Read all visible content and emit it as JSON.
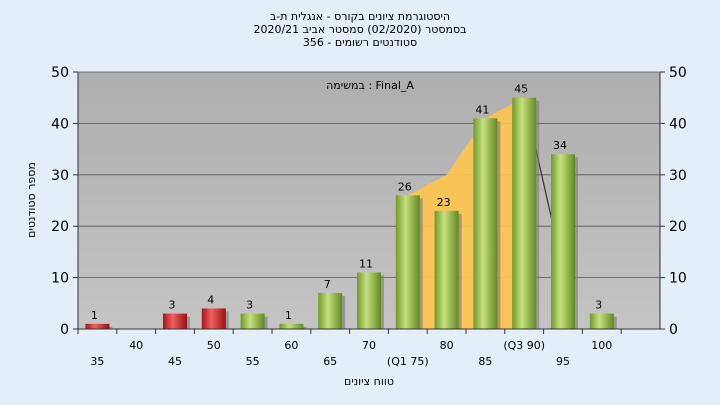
{
  "header": {
    "line1": "היסטוגרמת ציונים בקורס - אנגלית ת-ב",
    "line2": "בסמסטר  (02/2020)  סמסטר אביב 2020/21",
    "line3": "סטודנטים רשומים - 356"
  },
  "chart_data": {
    "type": "bar",
    "annotation": "במשימה : Final_A",
    "xlabel": "טווח ציונים",
    "ylabel": "מספר סטודנטים",
    "ylim": [
      0,
      50
    ],
    "yticks": [
      0,
      10,
      20,
      30,
      40,
      50
    ],
    "grid": true,
    "bars": [
      {
        "label": "35",
        "value": 1,
        "color": "#dd3333"
      },
      {
        "label": "40",
        "value": 0,
        "color": "#dd3333"
      },
      {
        "label": "45",
        "value": 3,
        "color": "#dd3333"
      },
      {
        "label": "50",
        "value": 4,
        "color": "#dd3333"
      },
      {
        "label": "55",
        "value": 3,
        "color": "#99c148"
      },
      {
        "label": "60",
        "value": 1,
        "color": "#99c148"
      },
      {
        "label": "65",
        "value": 7,
        "color": "#99c148"
      },
      {
        "label": "70",
        "value": 11,
        "color": "#99c148"
      },
      {
        "label": "(Q1 75)",
        "value": 26,
        "color": "#99c148"
      },
      {
        "label": "80",
        "value": 23,
        "color": "#99c148"
      },
      {
        "label": "85",
        "value": 41,
        "color": "#99c148"
      },
      {
        "label": "(Q3 90)",
        "value": 45,
        "color": "#99c148"
      },
      {
        "label": "95",
        "value": 34,
        "color": "#99c148"
      },
      {
        "label": "100",
        "value": 3,
        "color": "#99c148"
      }
    ],
    "box_area": {
      "color": "#ffc44d",
      "points": [
        [
          8,
          26
        ],
        [
          9,
          30
        ],
        [
          10,
          41
        ],
        [
          11,
          45
        ]
      ]
    },
    "whisker_line": {
      "from": [
        11,
        45
      ],
      "to": [
        11.9,
        15
      ]
    }
  }
}
